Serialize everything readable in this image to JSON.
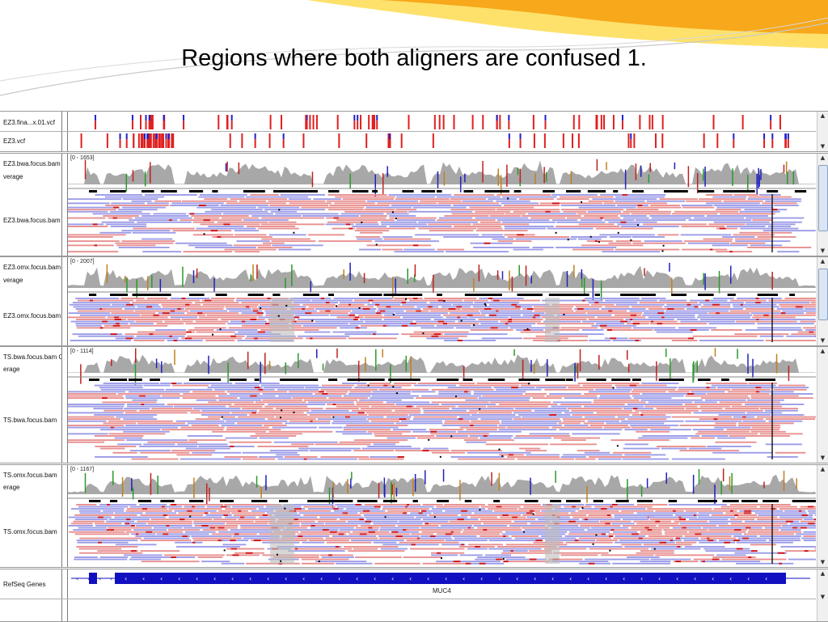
{
  "slide": {
    "title": "Regions where both aligners are confused 1."
  },
  "colors": {
    "orange": "#f7a81b",
    "yellow": "#fde16a",
    "forward_read": "#e89090",
    "reverse_read": "#9c9ce8",
    "coverage": "#a8a8a8",
    "variant_red": "#e02020",
    "variant_blue": "#2020c8",
    "gene": "#1010c0"
  },
  "vcf_panel": {
    "tracks": [
      {
        "name": "EZ3.fina...x.01.vcf"
      },
      {
        "name": "EZ3.vcf"
      }
    ]
  },
  "bam_panels": [
    {
      "coverage_name": "EZ3.bwa.focus.bam",
      "coverage_suffix": "verage",
      "alignment_name": "EZ3.bwa.focus.bam",
      "range": "[0 - 1653]"
    },
    {
      "coverage_name": "EZ3.omx.focus.bam",
      "coverage_suffix": "verage",
      "alignment_name": "EZ3.omx.focus.bam",
      "range": "[0 - 2007]"
    },
    {
      "coverage_name": "TS.bwa.focus.bam C",
      "coverage_suffix": "erage",
      "alignment_name": "TS.bwa.focus.bam",
      "range": "[0 - 1114]"
    },
    {
      "coverage_name": "TS.omx.focus.bam",
      "coverage_suffix": "erage",
      "alignment_name": "TS.omx.focus.bam",
      "range": "[0 - 1167]"
    }
  ],
  "gene_panel": {
    "name": "RefSeq Genes",
    "gene": "MUC4",
    "strand_glyph": "‹"
  },
  "scrollbar": {
    "up_icon": "▲",
    "down_icon": "▼"
  }
}
